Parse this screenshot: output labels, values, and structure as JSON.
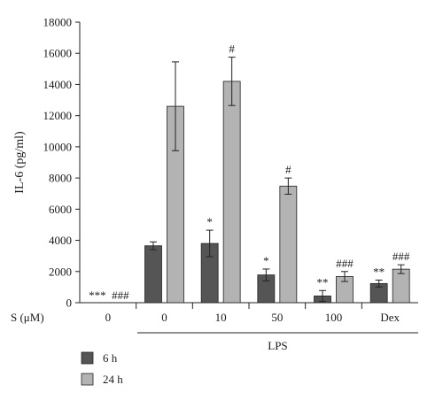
{
  "chart_data": {
    "type": "bar",
    "ylabel": "IL-6 (pg/ml)",
    "ylim": [
      0,
      18000
    ],
    "yticks": [
      0,
      2000,
      4000,
      6000,
      8000,
      10000,
      12000,
      14000,
      16000,
      18000
    ],
    "x_row_label": "S (μM)",
    "categories": [
      "0",
      "0",
      "10",
      "50",
      "100",
      "Dex"
    ],
    "group_label": "LPS",
    "series": [
      {
        "name": "6 h",
        "color": "#555555",
        "values": [
          0,
          3650,
          3800,
          1780,
          430,
          1230
        ],
        "errors": [
          0,
          250,
          850,
          380,
          350,
          220
        ],
        "annotations": [
          "***",
          "",
          "*",
          "*",
          "**",
          "**"
        ]
      },
      {
        "name": "24 h",
        "color": "#b3b3b3",
        "values": [
          0,
          12600,
          14200,
          7480,
          1680,
          2150
        ],
        "errors": [
          0,
          2850,
          1550,
          520,
          320,
          280
        ],
        "annotations": [
          "###",
          "",
          "#",
          "#",
          "###",
          "###"
        ]
      }
    ]
  }
}
